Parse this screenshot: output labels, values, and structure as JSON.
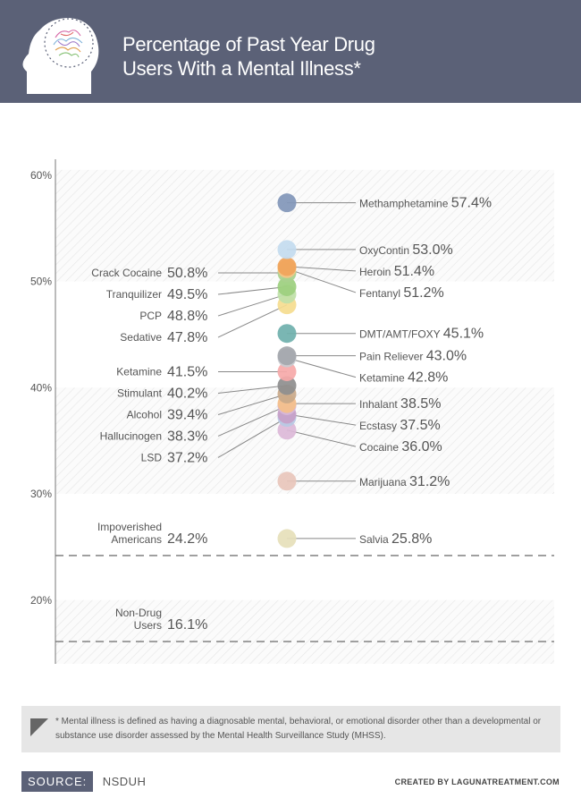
{
  "header": {
    "title": "Percentage of Past Year Drug Users With a Mental Illness*",
    "background": "#5b6177"
  },
  "chart_data": {
    "type": "scatter",
    "title": "Percentage of Past Year Drug Users With a Mental Illness*",
    "ylim": [
      14,
      61.5
    ],
    "y_ticks": [
      {
        "value": 60,
        "label": "60%"
      },
      {
        "value": 50,
        "label": "50%"
      },
      {
        "value": 40,
        "label": "40%"
      },
      {
        "value": 30,
        "label": "30%"
      },
      {
        "value": 20,
        "label": "20%"
      }
    ],
    "points": [
      {
        "name": "Methamphetamine",
        "value": 57.4,
        "label": "57.4%",
        "side": "right",
        "color": "#8196b9"
      },
      {
        "name": "OxyContin",
        "value": 53.0,
        "label": "53.0%",
        "side": "right",
        "color": "#c3dbef"
      },
      {
        "name": "Heroin",
        "value": 51.4,
        "label": "51.4%",
        "side": "right",
        "color": "#f0a35a"
      },
      {
        "name": "Fentanyl",
        "value": 51.2,
        "label": "51.2%",
        "side": "right",
        "color": "#f5c386"
      },
      {
        "name": "Crack Cocaine",
        "value": 50.8,
        "label": "50.8%",
        "side": "left",
        "color": "#a8d08d"
      },
      {
        "name": "Tranquilizer",
        "value": 49.5,
        "label": "49.5%",
        "side": "left",
        "color": "#9ccf7e"
      },
      {
        "name": "PCP",
        "value": 48.8,
        "label": "48.8%",
        "side": "left",
        "color": "#bfe0a8"
      },
      {
        "name": "Sedative",
        "value": 47.8,
        "label": "47.8%",
        "side": "left",
        "color": "#f5dc8f"
      },
      {
        "name": "DMT/AMT/FOXY",
        "value": 45.1,
        "label": "45.1%",
        "side": "right",
        "color": "#6fb0ac"
      },
      {
        "name": "Pain Reliever",
        "value": 43.0,
        "label": "43.0%",
        "side": "right",
        "color": "#a4a7ad"
      },
      {
        "name": "Ketamine",
        "value": 42.8,
        "label": "42.8%",
        "side": "right",
        "color": "#c9cbd0"
      },
      {
        "name": "Ketamine",
        "value": 41.5,
        "label": "41.5%",
        "side": "left",
        "color": "#f6a9a9"
      },
      {
        "name": "Stimulant",
        "value": 40.2,
        "label": "40.2%",
        "side": "left",
        "color": "#8e8e8e"
      },
      {
        "name": "Alcohol",
        "value": 39.4,
        "label": "39.4%",
        "side": "left",
        "color": "#c9a98a"
      },
      {
        "name": "Inhalant",
        "value": 38.5,
        "label": "38.5%",
        "side": "right",
        "color": "#f5c08a"
      },
      {
        "name": "Hallucinogen",
        "value": 38.3,
        "label": "38.3%",
        "side": "left",
        "color": "#d7b7d8"
      },
      {
        "name": "Ecstasy",
        "value": 37.5,
        "label": "37.5%",
        "side": "right",
        "color": "#c7a0c8"
      },
      {
        "name": "LSD",
        "value": 37.2,
        "label": "37.2%",
        "side": "left",
        "color": "#b7c9e4"
      },
      {
        "name": "Cocaine",
        "value": 36.0,
        "label": "36.0%",
        "side": "right",
        "color": "#dcb8d8"
      },
      {
        "name": "Marijuana",
        "value": 31.2,
        "label": "31.2%",
        "side": "right",
        "color": "#e8c5bb"
      },
      {
        "name": "Salvia",
        "value": 25.8,
        "label": "25.8%",
        "side": "right",
        "color": "#e6dfba"
      }
    ],
    "reference_lines": [
      {
        "name": [
          "Impoverished",
          "Americans"
        ],
        "value": 24.2,
        "label": "24.2%"
      },
      {
        "name": [
          "Non-Drug",
          "Users"
        ],
        "value": 16.1,
        "label": "16.1%"
      }
    ],
    "bands": [
      {
        "from": 50,
        "to": 60.5
      },
      {
        "from": 30,
        "to": 40
      },
      {
        "from": 14,
        "to": 20
      }
    ]
  },
  "footnote": "* Mental illness is defined as having a diagnosable mental, behavioral, or emotional disorder other than a developmental or substance use disorder assessed by the Mental Health Surveillance Study (MHSS).",
  "source": {
    "label": "SOURCE:",
    "value": "NSDUH"
  },
  "credit": "CREATED BY LAGUNATREATMENT.COM"
}
